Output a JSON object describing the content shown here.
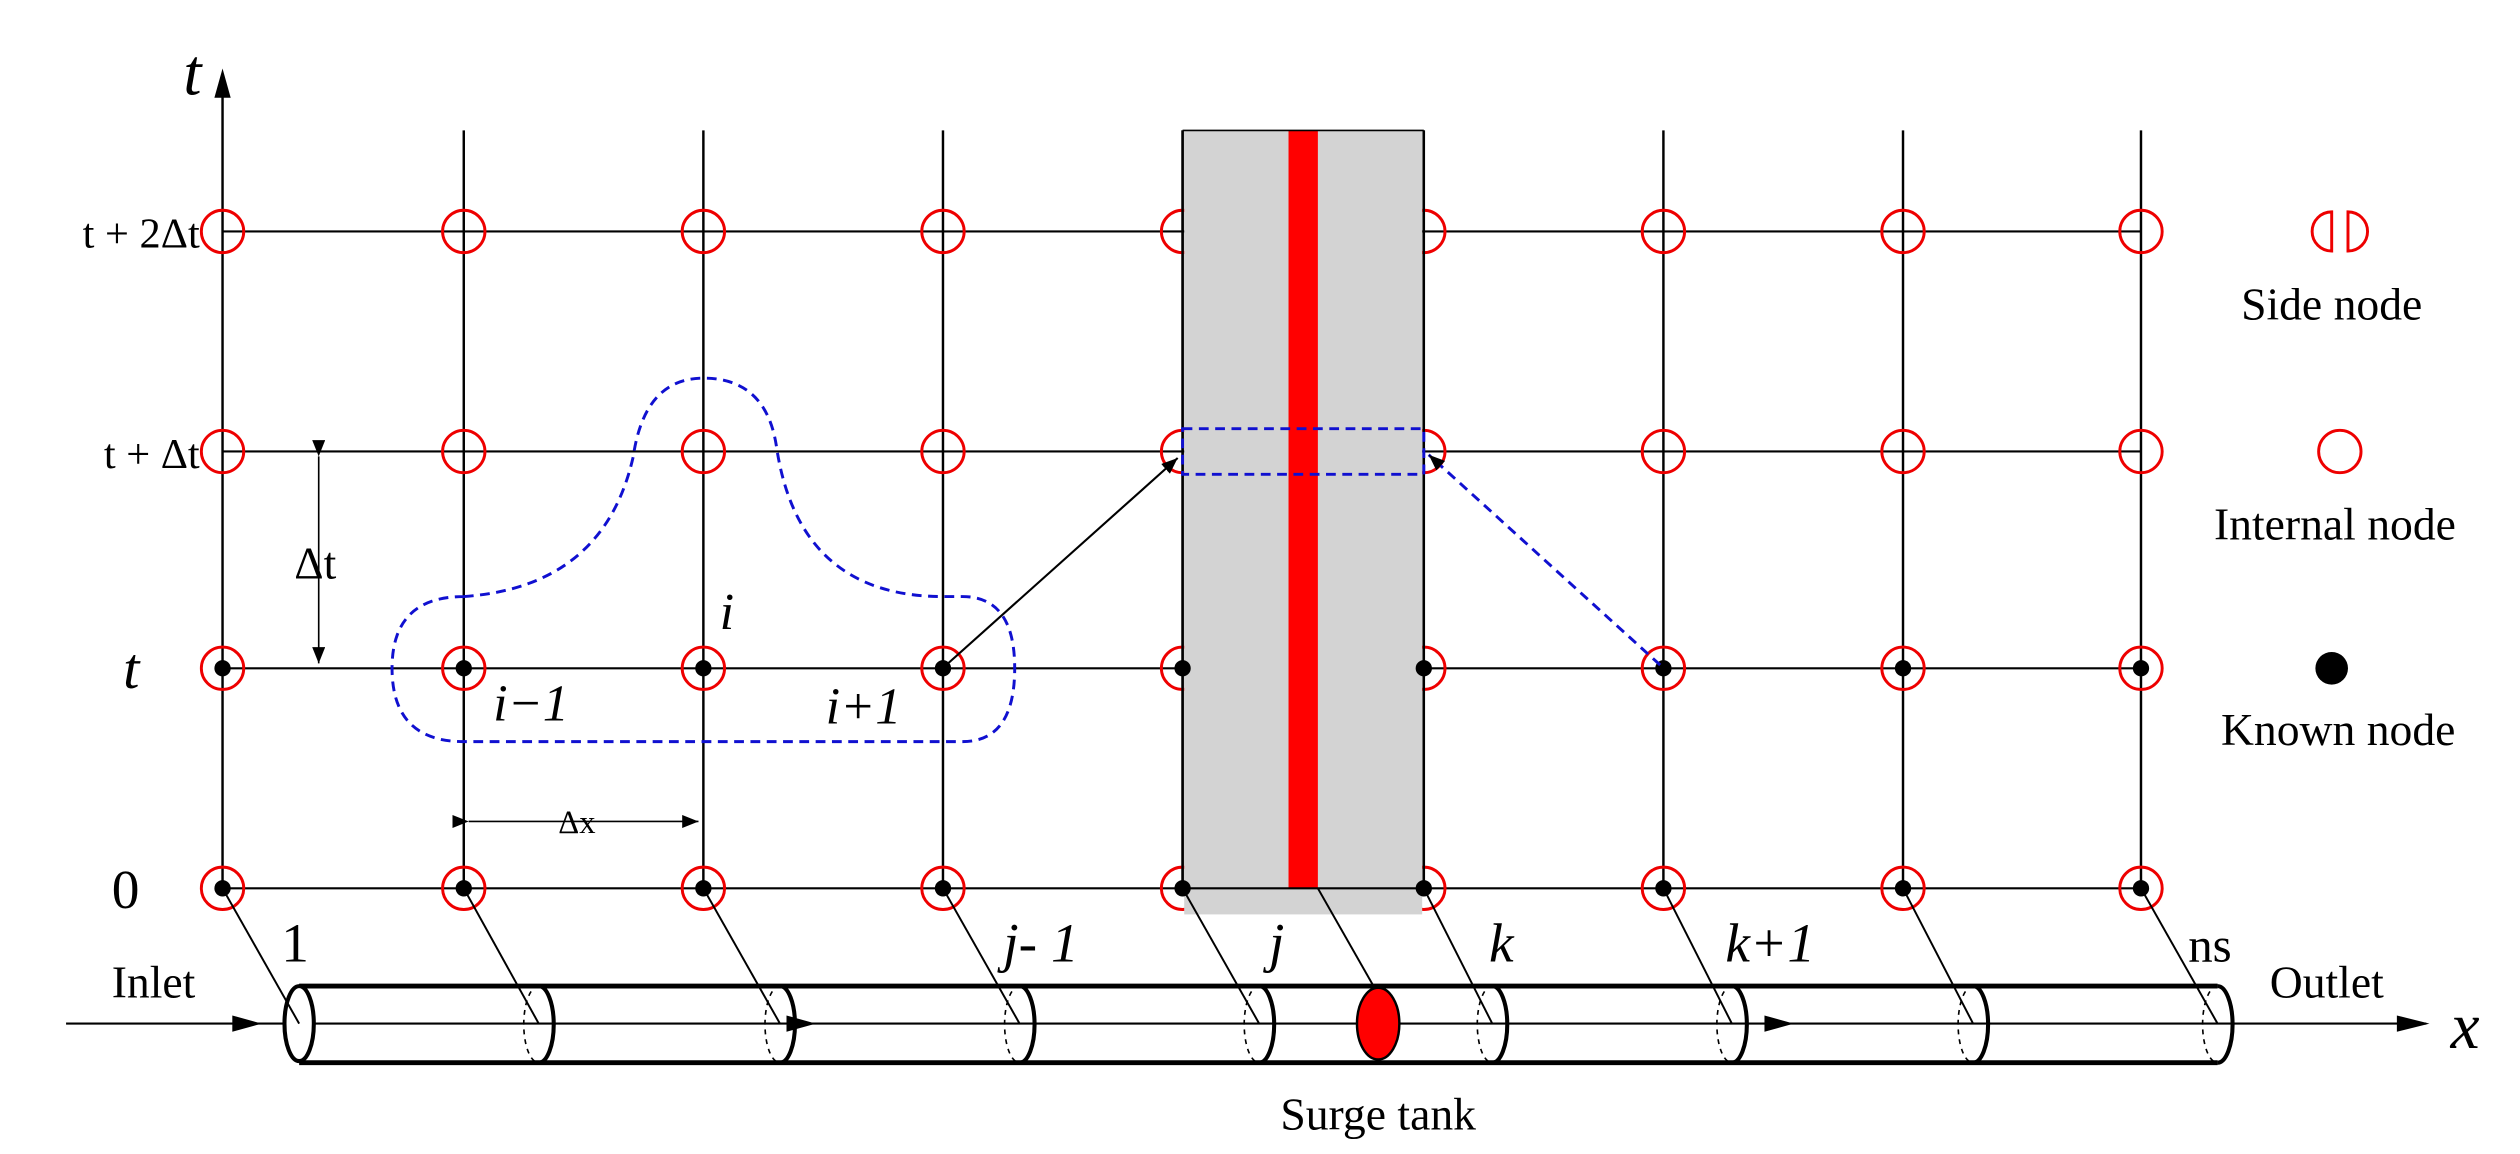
{
  "axes": {
    "t_label": "t",
    "x_label": "x"
  },
  "time_levels": [
    "t + 2Δt",
    "t + Δt",
    "t",
    "0"
  ],
  "steps": {
    "dt": "Δt",
    "dx": "Δx"
  },
  "node_labels": {
    "i": "i",
    "i_minus_1": "i−1",
    "i_plus_1": "i+1"
  },
  "pipe_labels": {
    "first": "1",
    "j_minus_1": "j- 1",
    "j": "j",
    "k": "k",
    "k_plus_1": "k+1",
    "last": "ns",
    "inlet": "Inlet",
    "outlet": "Outlet",
    "surge_tank": "Surge tank"
  },
  "legend": {
    "side": "Side node",
    "internal": "Internal node",
    "known": "Known node"
  }
}
